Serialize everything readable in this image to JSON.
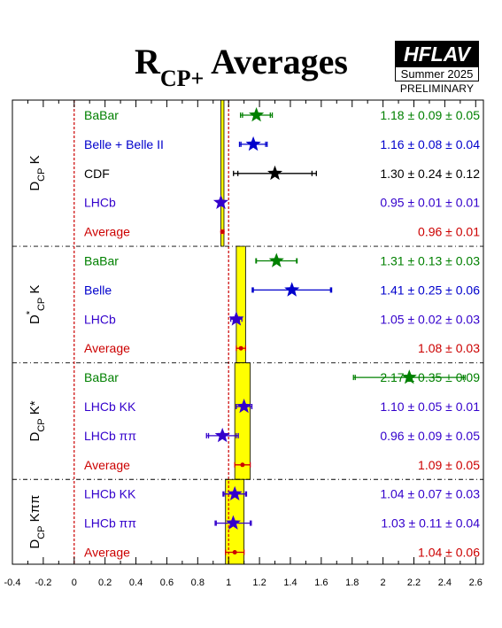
{
  "header": {
    "title_main": "R",
    "title_sub": "CP+",
    "title_rest": " Averages",
    "logo": "HFLAV",
    "edition": "Summer 2025",
    "status": "PRELIMINARY"
  },
  "chart_data": {
    "type": "forest",
    "xlim": [
      -0.4,
      2.65
    ],
    "ticks": [
      "-0.4",
      "-0.2",
      "0",
      "0.2",
      "0.4",
      "0.6",
      "0.8",
      "1",
      "1.2",
      "1.4",
      "1.6",
      "1.8",
      "2",
      "2.2",
      "2.4",
      "2.6"
    ],
    "ref_lines": [
      0,
      1
    ],
    "colors": {
      "BaBar": "#008000",
      "Belle": "#0000cc",
      "CDF": "#000000",
      "LHCb": "#3300cc",
      "Average": "#cc0000",
      "band": "#ffff00"
    },
    "groups": [
      {
        "label_main": "D",
        "label_sub": "CP",
        "label_sup": "",
        "label_rest": " K",
        "band": [
          0.95,
          0.97
        ],
        "rows": [
          {
            "name": "BaBar",
            "text": "1.18 ± 0.09 ± 0.05",
            "value": 1.18,
            "stat": 0.09,
            "syst": 0.05,
            "color": "#008000",
            "marker": "star"
          },
          {
            "name": "Belle + Belle II",
            "text": "1.16 ± 0.08 ± 0.04",
            "value": 1.16,
            "stat": 0.08,
            "syst": 0.04,
            "color": "#0000cc",
            "marker": "star"
          },
          {
            "name": "CDF",
            "text": "1.30 ± 0.24 ± 0.12",
            "value": 1.3,
            "stat": 0.24,
            "syst": 0.12,
            "color": "#000000",
            "marker": "star"
          },
          {
            "name": "LHCb",
            "text": "0.95 ± 0.01 ± 0.01",
            "value": 0.95,
            "stat": 0.01,
            "syst": 0.01,
            "color": "#3300cc",
            "marker": "star"
          },
          {
            "name": "Average",
            "text": "0.96 ± 0.01",
            "value": 0.96,
            "stat": 0.01,
            "syst": 0,
            "color": "#cc0000",
            "marker": "dot"
          }
        ]
      },
      {
        "label_main": "D",
        "label_sub": "CP",
        "label_sup": "*",
        "label_rest": " K",
        "band": [
          1.05,
          1.11
        ],
        "rows": [
          {
            "name": "BaBar",
            "text": "1.31 ± 0.13 ± 0.03",
            "value": 1.31,
            "stat": 0.13,
            "syst": 0.03,
            "color": "#008000",
            "marker": "star"
          },
          {
            "name": "Belle",
            "text": "1.41 ± 0.25 ± 0.06",
            "value": 1.41,
            "stat": 0.25,
            "syst": 0.06,
            "color": "#0000cc",
            "marker": "star"
          },
          {
            "name": "LHCb",
            "text": "1.05 ± 0.02 ± 0.03",
            "value": 1.05,
            "stat": 0.02,
            "syst": 0.03,
            "color": "#3300cc",
            "marker": "star"
          },
          {
            "name": "Average",
            "text": "1.08 ± 0.03",
            "value": 1.08,
            "stat": 0.03,
            "syst": 0,
            "color": "#cc0000",
            "marker": "dot"
          }
        ]
      },
      {
        "label_main": "D",
        "label_sub": "CP",
        "label_sup": "",
        "label_rest": " K*",
        "band": [
          1.04,
          1.14
        ],
        "rows": [
          {
            "name": "BaBar",
            "text": "2.17 ± 0.35 ± 0.09",
            "value": 2.17,
            "stat": 0.35,
            "syst": 0.09,
            "color": "#008000",
            "marker": "star"
          },
          {
            "name": "LHCb KK",
            "text": "1.10 ± 0.05 ± 0.01",
            "value": 1.1,
            "stat": 0.05,
            "syst": 0.01,
            "color": "#3300cc",
            "marker": "star"
          },
          {
            "name": "LHCb ππ",
            "text": "0.96 ± 0.09 ± 0.05",
            "value": 0.96,
            "stat": 0.09,
            "syst": 0.05,
            "color": "#3300cc",
            "marker": "star"
          },
          {
            "name": "Average",
            "text": "1.09 ± 0.05",
            "value": 1.09,
            "stat": 0.05,
            "syst": 0,
            "color": "#cc0000",
            "marker": "dot"
          }
        ]
      },
      {
        "label_main": "D",
        "label_sub": "CP",
        "label_sup": "",
        "label_rest": " Kππ",
        "band": [
          0.98,
          1.1
        ],
        "rows": [
          {
            "name": "LHCb KK",
            "text": "1.04 ± 0.07 ± 0.03",
            "value": 1.04,
            "stat": 0.07,
            "syst": 0.03,
            "color": "#3300cc",
            "marker": "star"
          },
          {
            "name": "LHCb ππ",
            "text": "1.03 ± 0.11 ± 0.04",
            "value": 1.03,
            "stat": 0.11,
            "syst": 0.04,
            "color": "#3300cc",
            "marker": "star"
          },
          {
            "name": "Average",
            "text": "1.04 ± 0.06",
            "value": 1.04,
            "stat": 0.06,
            "syst": 0,
            "color": "#cc0000",
            "marker": "dot"
          }
        ]
      }
    ]
  }
}
